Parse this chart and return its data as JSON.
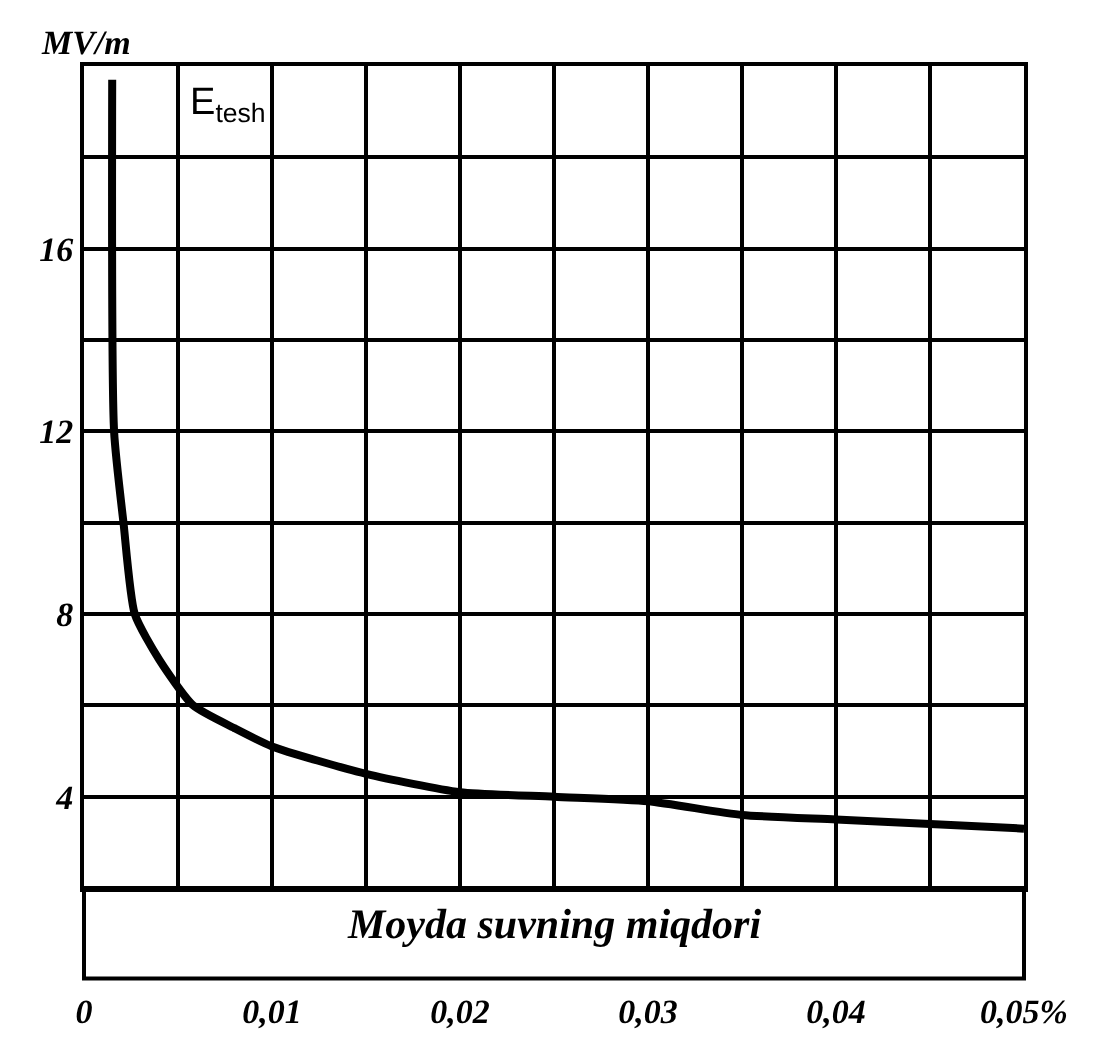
{
  "chart_data": {
    "type": "line",
    "ylabel": "MV/m",
    "xlabel": "Moyda suvning miqdori",
    "annotations": [
      "E$_{tesh}$"
    ],
    "x": [
      0.0015,
      0.0016,
      0.0021,
      0.0027,
      0.004,
      0.0058,
      0.008,
      0.01,
      0.015,
      0.02,
      0.025,
      0.03,
      0.035,
      0.04,
      0.045,
      0.05
    ],
    "series": [
      {
        "color": "#000000",
        "values": [
          19.7,
          12,
          10,
          8,
          7,
          6,
          5.5,
          5.1,
          4.5,
          4.1,
          4.0,
          3.9,
          3.6,
          3.5,
          3.4,
          3.3
        ]
      }
    ],
    "xlim": [
      0,
      0.05
    ],
    "ylim": [
      2,
      20
    ],
    "xticks": [
      {
        "value": 0,
        "label": "0"
      },
      {
        "value": 0.005,
        "label": null
      },
      {
        "value": 0.01,
        "label": "0,01"
      },
      {
        "value": 0.015,
        "label": null
      },
      {
        "value": 0.02,
        "label": "0,02"
      },
      {
        "value": 0.025,
        "label": null
      },
      {
        "value": 0.03,
        "label": "0,03"
      },
      {
        "value": 0.035,
        "label": null
      },
      {
        "value": 0.04,
        "label": "0,04"
      },
      {
        "value": 0.045,
        "label": null
      },
      {
        "value": 0.05,
        "label": "0,05%"
      }
    ],
    "yticks": [
      {
        "value": 2,
        "label": null
      },
      4,
      {
        "value": 6,
        "label": null
      },
      8,
      {
        "value": 10,
        "label": null
      },
      12,
      {
        "value": 14,
        "label": null
      },
      16,
      {
        "value": 18,
        "label": null
      },
      {
        "value": 20,
        "label": null
      }
    ],
    "grid": true,
    "marker": "none",
    "line_style": "solid"
  }
}
